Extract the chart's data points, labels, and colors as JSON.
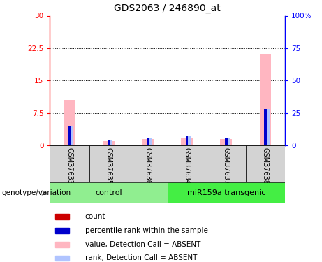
{
  "title": "GDS2063 / 246890_at",
  "samples": [
    "GSM37633",
    "GSM37635",
    "GSM37636",
    "GSM37634",
    "GSM37637",
    "GSM37638"
  ],
  "value_absent": [
    10.5,
    1.0,
    1.5,
    1.8,
    1.5,
    21.0
  ],
  "rank_absent_pct": [
    15.0,
    4.0,
    6.0,
    7.0,
    5.5,
    28.0
  ],
  "count_val": [
    0.3,
    0.3,
    0.3,
    0.3,
    0.3,
    0.3
  ],
  "rank_val_pct": [
    15.0,
    4.0,
    6.0,
    7.0,
    5.5,
    28.0
  ],
  "ylim_left": [
    0,
    30
  ],
  "ylim_right": [
    0,
    100
  ],
  "yticks_left": [
    0,
    7.5,
    15,
    22.5,
    30
  ],
  "yticks_right": [
    0,
    25,
    50,
    75,
    100
  ],
  "color_value_absent": "#ffb6c1",
  "color_rank_absent": "#b0c4ff",
  "color_count": "#cc0000",
  "color_rank": "#0000cc",
  "group_label_color": "#d3d3d3",
  "control_color": "#90ee90",
  "transgenic_color": "#44ee44",
  "groups": [
    {
      "name": "control",
      "start": 0,
      "end": 2,
      "color": "#90ee90"
    },
    {
      "name": "miR159a transgenic",
      "start": 3,
      "end": 5,
      "color": "#44ee44"
    }
  ],
  "legend_items": [
    {
      "label": "count",
      "color": "#cc0000"
    },
    {
      "label": "percentile rank within the sample",
      "color": "#0000cc"
    },
    {
      "label": "value, Detection Call = ABSENT",
      "color": "#ffb6c1"
    },
    {
      "label": "rank, Detection Call = ABSENT",
      "color": "#b0c4ff"
    }
  ]
}
